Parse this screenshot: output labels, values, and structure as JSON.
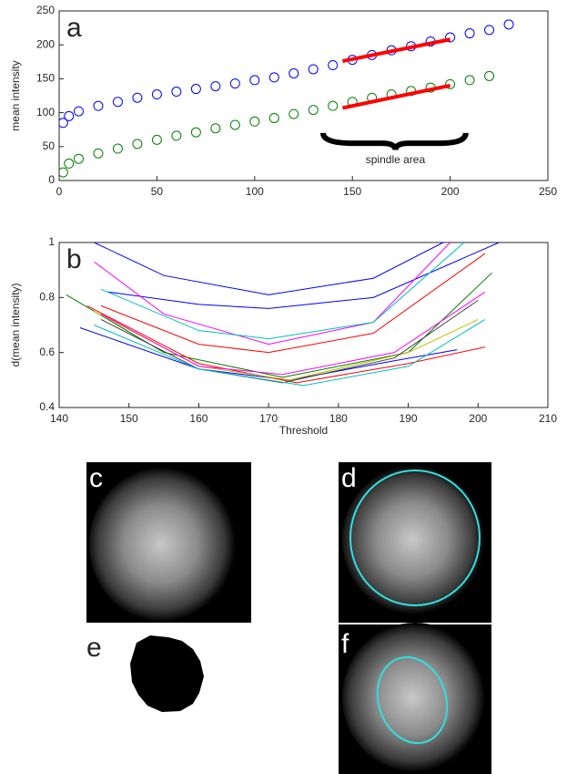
{
  "chart_data": [
    {
      "type": "scatter",
      "label": "a",
      "ylabel": "mean intensity",
      "xlim": [
        0,
        250
      ],
      "xticks": [
        0,
        50,
        100,
        150,
        200,
        250
      ],
      "ylim": [
        0,
        250
      ],
      "yticks": [
        0,
        50,
        100,
        150,
        200,
        250
      ],
      "annotation": "spindle area",
      "series": [
        {
          "color": "#0000ff",
          "mode": "markers",
          "x": [
            2,
            5,
            10,
            20,
            30,
            40,
            50,
            60,
            70,
            80,
            90,
            100,
            110,
            120,
            130,
            140,
            150,
            160,
            170,
            180,
            190,
            200,
            210,
            220,
            230
          ],
          "values": [
            85,
            95,
            102,
            110,
            116,
            122,
            127,
            131,
            135,
            139,
            143,
            148,
            152,
            158,
            164,
            170,
            178,
            185,
            192,
            198,
            205,
            211,
            217,
            222,
            230
          ]
        },
        {
          "color": "#008000",
          "mode": "markers",
          "x": [
            2,
            5,
            10,
            20,
            30,
            40,
            50,
            60,
            70,
            80,
            90,
            100,
            110,
            120,
            130,
            140,
            150,
            160,
            170,
            180,
            190,
            200,
            210,
            220
          ],
          "values": [
            12,
            25,
            32,
            40,
            47,
            54,
            60,
            66,
            71,
            77,
            82,
            87,
            92,
            98,
            104,
            110,
            116,
            122,
            127,
            132,
            137,
            142,
            148,
            154
          ]
        },
        {
          "color": "#ff0000",
          "mode": "line",
          "x": [
            145,
            200
          ],
          "values": [
            176,
            208
          ]
        },
        {
          "color": "#ff0000",
          "mode": "line",
          "x": [
            145,
            200
          ],
          "values": [
            107,
            140
          ]
        }
      ]
    },
    {
      "type": "line",
      "label": "b",
      "xlabel": "Threshold",
      "ylabel": "d(mean intensity)",
      "xlim": [
        140,
        210
      ],
      "xticks": [
        140,
        150,
        160,
        170,
        180,
        190,
        200,
        210
      ],
      "ylim": [
        0.4,
        1
      ],
      "yticks": [
        0.4,
        0.6,
        0.8,
        1
      ],
      "series": [
        {
          "color": "#0000ff",
          "x": [
            145,
            155,
            170,
            185,
            195
          ],
          "values": [
            1.0,
            0.88,
            0.81,
            0.87,
            1.0
          ]
        },
        {
          "color": "#0000ff",
          "x": [
            147,
            160,
            170,
            185,
            203
          ],
          "values": [
            0.82,
            0.775,
            0.76,
            0.8,
            1.0
          ]
        },
        {
          "color": "#ff00ff",
          "x": [
            145,
            155,
            170,
            185,
            196
          ],
          "values": [
            0.93,
            0.74,
            0.63,
            0.71,
            1.0
          ]
        },
        {
          "color": "#00bfbf",
          "x": [
            146,
            160,
            170,
            185,
            198
          ],
          "values": [
            0.83,
            0.68,
            0.65,
            0.71,
            1.0
          ]
        },
        {
          "color": "#ff0000",
          "x": [
            146,
            160,
            170,
            185,
            201
          ],
          "values": [
            0.77,
            0.63,
            0.6,
            0.67,
            0.96
          ]
        },
        {
          "color": "#008000",
          "x": [
            141,
            155,
            172,
            190,
            202
          ],
          "values": [
            0.81,
            0.6,
            0.51,
            0.6,
            0.89
          ]
        },
        {
          "color": "#0000ff",
          "x": [
            143,
            160,
            173,
            188,
            197
          ],
          "values": [
            0.69,
            0.54,
            0.5,
            0.57,
            0.61
          ]
        },
        {
          "color": "#ff0000",
          "x": [
            144,
            160,
            174,
            190,
            201
          ],
          "values": [
            0.77,
            0.56,
            0.49,
            0.56,
            0.62
          ]
        },
        {
          "color": "#bfbf00",
          "x": [
            145,
            160,
            173,
            190,
            200
          ],
          "values": [
            0.75,
            0.55,
            0.5,
            0.6,
            0.72
          ]
        },
        {
          "color": "#404040",
          "x": [
            146,
            160,
            172,
            188,
            200
          ],
          "values": [
            0.72,
            0.54,
            0.49,
            0.58,
            0.79
          ]
        },
        {
          "color": "#ff00ff",
          "x": [
            146,
            160,
            172,
            188,
            201
          ],
          "values": [
            0.74,
            0.55,
            0.52,
            0.6,
            0.82
          ]
        },
        {
          "color": "#00bfbf",
          "x": [
            145,
            160,
            175,
            190,
            201
          ],
          "values": [
            0.7,
            0.54,
            0.48,
            0.55,
            0.72
          ]
        }
      ]
    }
  ],
  "image_panels": [
    {
      "label": "c"
    },
    {
      "label": "d"
    },
    {
      "label": "e"
    },
    {
      "label": "f"
    }
  ]
}
